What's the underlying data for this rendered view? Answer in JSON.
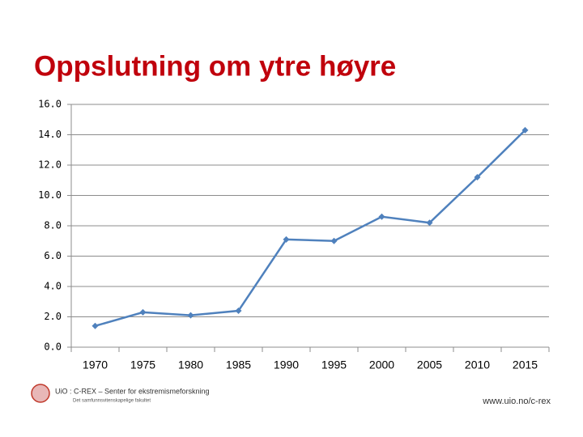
{
  "chart_data": {
    "type": "line",
    "title": "Oppslutning om ytre høyre",
    "categories": [
      "1970",
      "1975",
      "1980",
      "1985",
      "1990",
      "1995",
      "2000",
      "2005",
      "2010",
      "2015"
    ],
    "values": [
      1.4,
      2.3,
      2.1,
      2.4,
      7.1,
      7.0,
      8.6,
      8.2,
      11.2,
      14.3
    ],
    "color": "#4f81bd",
    "ylim": [
      0,
      16
    ],
    "yticks": [
      {
        "value": 0,
        "label": "0.0"
      },
      {
        "value": 2,
        "label": "2.0"
      },
      {
        "value": 4,
        "label": "4.0"
      },
      {
        "value": 6,
        "label": "6.0"
      },
      {
        "value": 8,
        "label": "8.0"
      },
      {
        "value": 10,
        "label": "10.0"
      },
      {
        "value": 12,
        "label": "12.0"
      },
      {
        "value": 14,
        "label": "14.0"
      },
      {
        "value": 16,
        "label": "16.0"
      }
    ],
    "grid": true
  },
  "footer": {
    "logo": "UiO : C-REX – Senter for ekstremismeforskning",
    "faculty": "Det samfunnsvitenskapelige fakultet",
    "url": "www.uio.no/c-rex"
  }
}
